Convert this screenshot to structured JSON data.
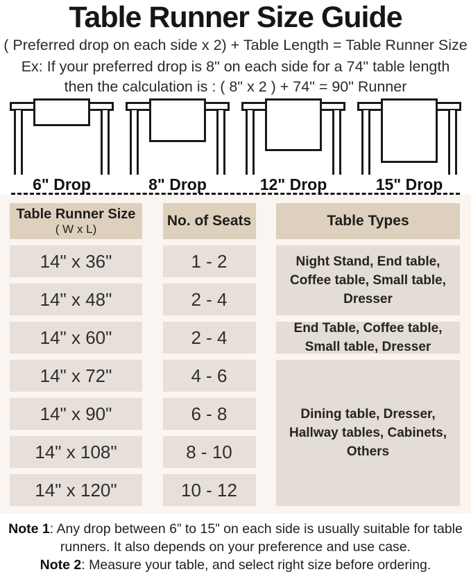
{
  "title": "Table Runner Size Guide",
  "intro": {
    "formula": "( Preferred drop on each side x 2) + Table Length = Table Runner Size",
    "example_line1": "Ex: If your preferred drop is 8\" on each side for a 74\" table length",
    "example_line2": "then the calculation is : ( 8\" x 2 ) + 74\" = 90\" Runner"
  },
  "drop_diagrams": [
    {
      "label": "6\" Drop"
    },
    {
      "label": "8\" Drop"
    },
    {
      "label": "12\" Drop"
    },
    {
      "label": "15\" Drop"
    }
  ],
  "size_table": {
    "headers": {
      "col1_line1": "Table Runner Size",
      "col1_line2": "( W x L)",
      "col2": "No. of Seats",
      "col3": "Table Types"
    },
    "rows": [
      {
        "size": "14\" x 36\"",
        "seats": "1 - 2"
      },
      {
        "size": "14\" x 48\"",
        "seats": "2 - 4"
      },
      {
        "size": "14\" x 60\"",
        "seats": "2 - 4"
      },
      {
        "size": "14\" x 72\"",
        "seats": "4 - 6"
      },
      {
        "size": "14\" x 90\"",
        "seats": "6 - 8"
      },
      {
        "size": "14\" x 108\"",
        "seats": "8 - 10"
      },
      {
        "size": "14\" x 120\"",
        "seats": "10 - 12"
      }
    ],
    "table_types": [
      {
        "rows_covered": "14\" x 36\" and 14\" x 48\"",
        "text": "Night Stand, End table, Coffee table, Small table, Dresser"
      },
      {
        "rows_covered": "14\" x 60\"",
        "text": "End Table, Coffee table, Small table, Dresser"
      },
      {
        "rows_covered": "14\" x 72\" through 14\" x 120\"",
        "text": "Dining table, Dresser, Hallway tables, Cabinets, Others"
      }
    ]
  },
  "notes": [
    {
      "label": "Note 1",
      "text": ": Any drop between 6” to 15” on each side is usually suitable for table runners. It also depends on your preference and use case."
    },
    {
      "label": "Note 2",
      "text": ": Measure your table, and select right size before ordering."
    }
  ],
  "colors": {
    "header_cell_bg": "#ddd1bd",
    "data_cell_bg": "#e7e0da",
    "types_cell_bg": "#e4ddd5",
    "table_section_bg": "#faf5f1",
    "page_bg": "#ffffff",
    "line_art": "#1a1a1a",
    "text": "#1d1d1d"
  }
}
